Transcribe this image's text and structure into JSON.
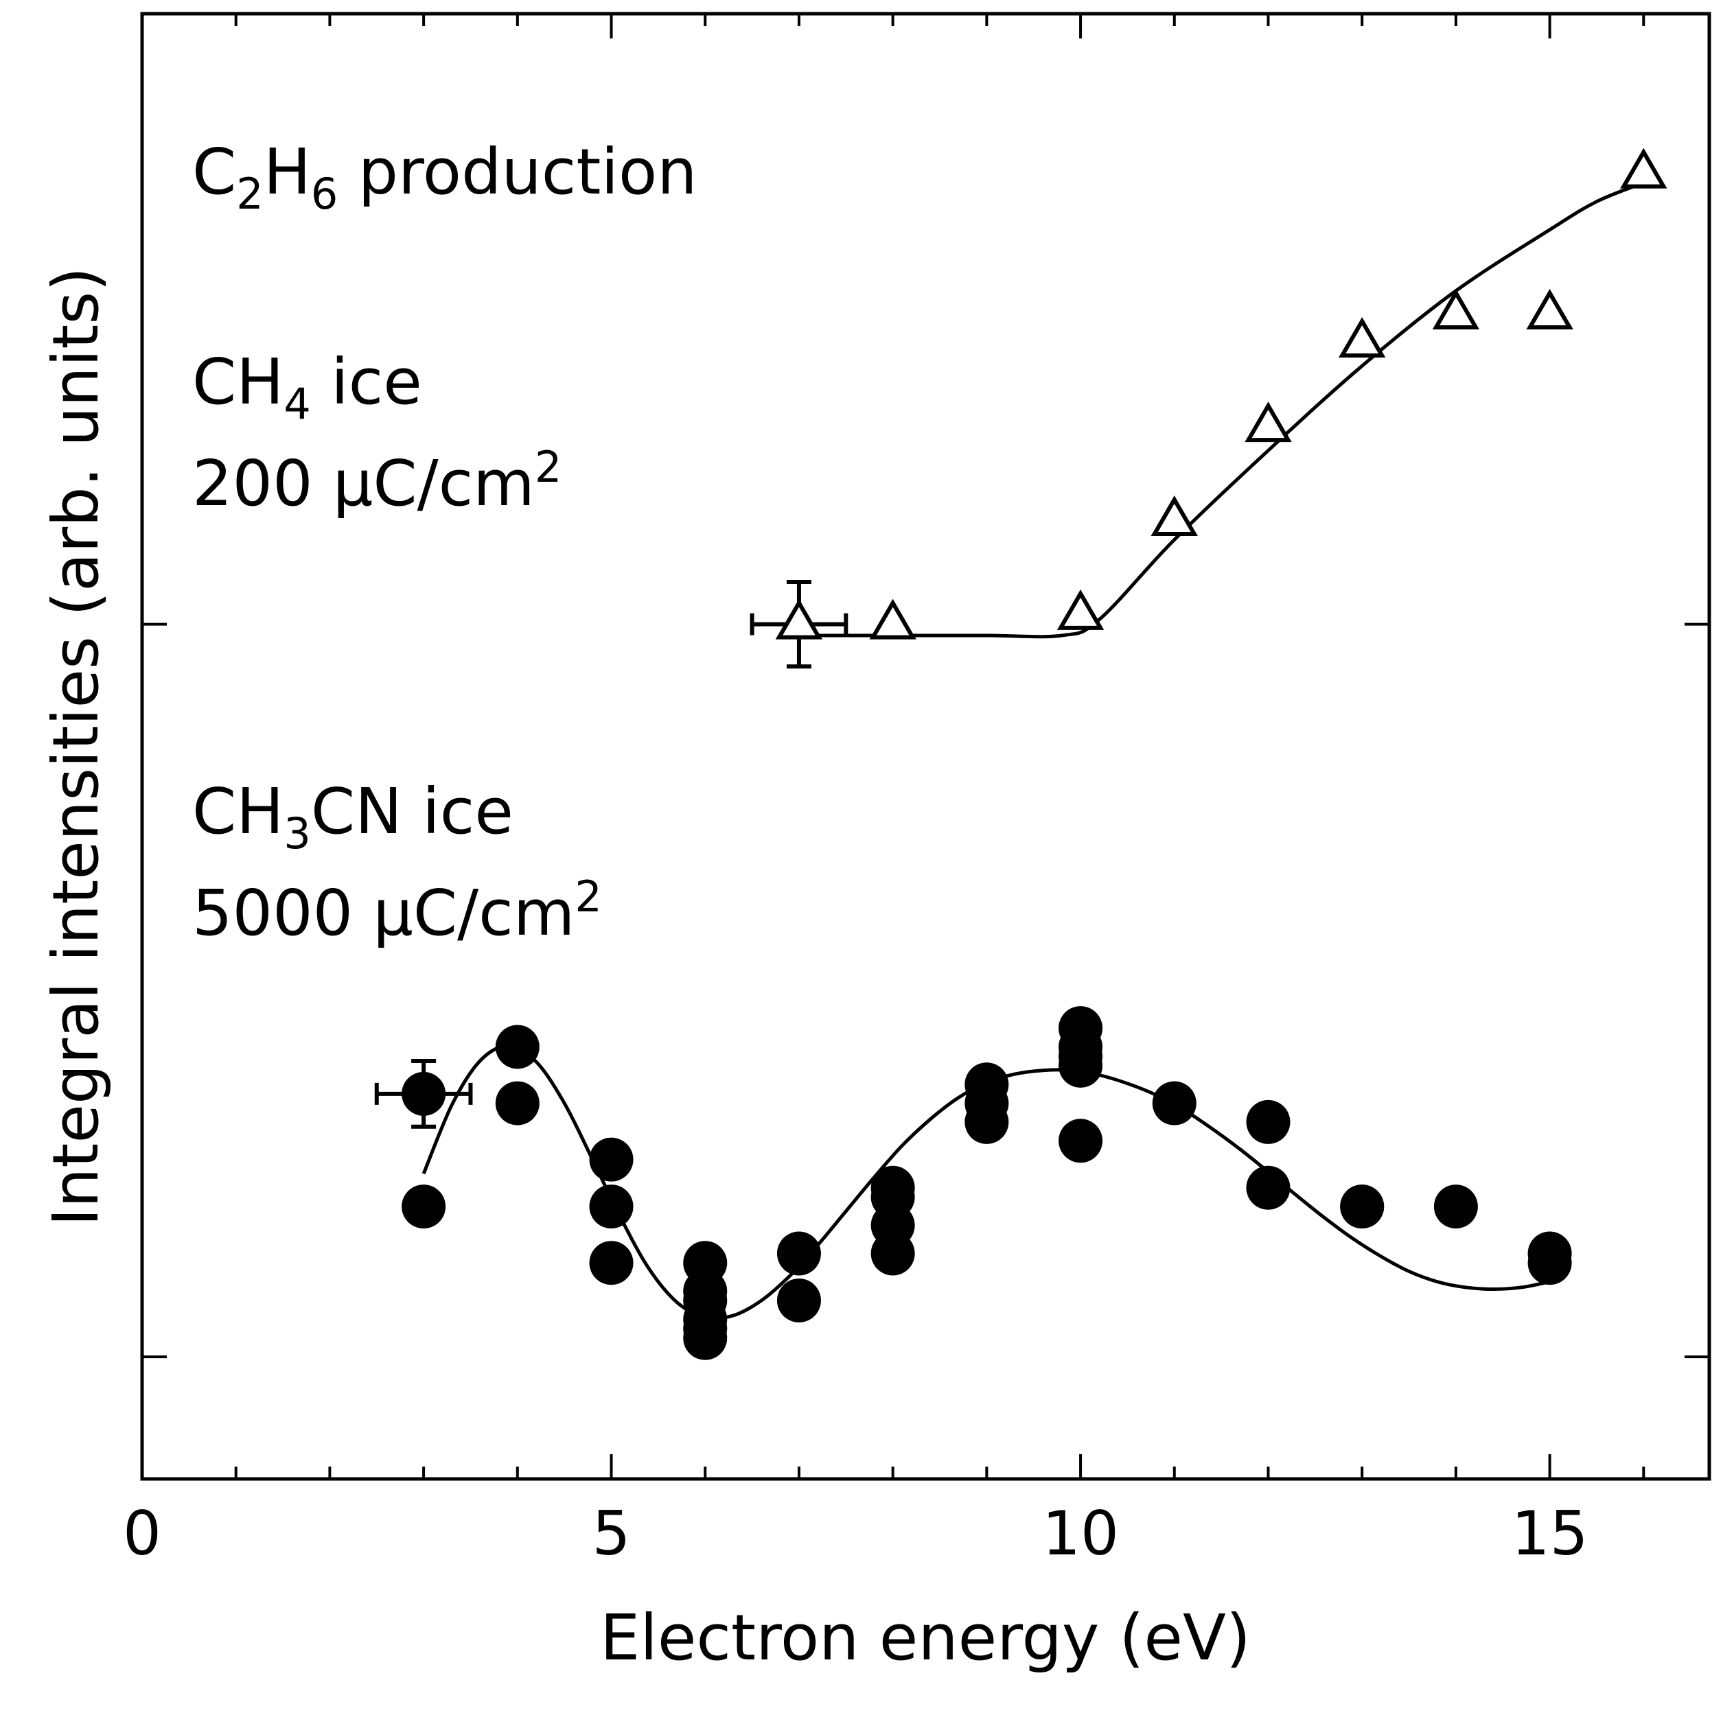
{
  "chart_data": {
    "type": "scatter",
    "xlabel": "Electron energy (eV)",
    "ylabel": "Integral intensities (arb. units)",
    "xlim": [
      0,
      16.7
    ],
    "ylim": [
      -2.6,
      13.0
    ],
    "x_ticks": [
      0,
      5,
      10,
      15
    ],
    "x_tick_labels": [
      "0",
      "5",
      "10",
      "15"
    ],
    "y_ticks": [
      -1.3,
      6.5
    ],
    "grid": false,
    "legend": "none",
    "annotations": [
      {
        "id": "c2h6",
        "parts": [
          {
            "text": "C",
            "sub": false
          },
          {
            "text": "2",
            "sub": true
          },
          {
            "text": "H",
            "sub": false
          },
          {
            "text": "6",
            "sub": true
          },
          {
            "text": " production",
            "sub": false
          }
        ]
      },
      {
        "id": "ch4-ice",
        "parts": [
          {
            "text": "CH",
            "sub": false
          },
          {
            "text": "4",
            "sub": true
          },
          {
            "text": " ice",
            "sub": false
          }
        ]
      },
      {
        "id": "ch4-dose",
        "parts": [
          {
            "text": "200 μC/cm",
            "sub": false
          },
          {
            "text": "2",
            "sup": true
          }
        ]
      },
      {
        "id": "ch3cn-ice",
        "parts": [
          {
            "text": "CH",
            "sub": false
          },
          {
            "text": "3",
            "sub": true
          },
          {
            "text": "CN ice",
            "sub": false
          }
        ]
      },
      {
        "id": "ch3cn-dose",
        "parts": [
          {
            "text": "5000 μC/cm",
            "sub": false
          },
          {
            "text": "2",
            "sup": true
          }
        ]
      }
    ],
    "series": [
      {
        "name": "CH4 ice (C2H6 production)",
        "marker": "open-triangle",
        "x": [
          7,
          8,
          10,
          11,
          12,
          13,
          14,
          15,
          16
        ],
        "y": [
          6.5,
          6.5,
          6.6,
          7.6,
          8.6,
          9.5,
          9.8,
          9.8,
          11.3
        ],
        "errorbar": {
          "x": 7,
          "y": 6.5,
          "xerr": 0.5,
          "yerr": 0.45
        },
        "fit": {
          "x": [
            7,
            8,
            9,
            9.8,
            10.2,
            11,
            12,
            13,
            14,
            15,
            15.5,
            16
          ],
          "y": [
            6.38,
            6.38,
            6.38,
            6.38,
            6.55,
            7.4,
            8.35,
            9.25,
            10.05,
            10.7,
            11.0,
            11.2
          ]
        }
      },
      {
        "name": "CH3CN ice (C2H6 production)",
        "marker": "filled-circle",
        "x": [
          3,
          3,
          4,
          4,
          5,
          5,
          5,
          6,
          6,
          6,
          6,
          6,
          6,
          7,
          7,
          8,
          8,
          8,
          8,
          9,
          9,
          9,
          10,
          10,
          10,
          10,
          10,
          11,
          12,
          12,
          13,
          13,
          14,
          15,
          15
        ],
        "y": [
          1.5,
          0.3,
          2.0,
          1.4,
          0.8,
          0.3,
          -0.3,
          -0.6,
          -0.7,
          -0.9,
          -1.0,
          -1.1,
          -0.3,
          -0.2,
          -0.7,
          0.5,
          0.4,
          -0.2,
          0.1,
          1.6,
          1.4,
          1.2,
          2.2,
          2.0,
          1.8,
          1.0,
          1.9,
          1.4,
          1.2,
          0.5,
          0.3,
          0.3,
          0.3,
          -0.2,
          -0.3
        ],
        "errorbar": {
          "x": 3,
          "y": 1.5,
          "xerr": 0.5,
          "yerr": 0.35
        },
        "fit": {
          "x": [
            3.0,
            3.3,
            3.6,
            3.9,
            4.2,
            4.5,
            4.8,
            5.1,
            5.4,
            5.7,
            6.0,
            6.3,
            6.6,
            6.9,
            7.2,
            7.5,
            7.8,
            8.1,
            8.4,
            8.7,
            9.0,
            9.3,
            9.6,
            9.9,
            10.2,
            10.5,
            10.8,
            11.1,
            11.4,
            11.7,
            12.0,
            12.3,
            12.6,
            12.9,
            13.2,
            13.5,
            13.8,
            14.1,
            14.4,
            14.7,
            15.0
          ],
          "y": [
            0.65,
            1.38,
            1.85,
            2.01,
            1.84,
            1.4,
            0.8,
            0.18,
            -0.36,
            -0.72,
            -0.88,
            -0.86,
            -0.7,
            -0.44,
            -0.11,
            0.25,
            0.61,
            0.95,
            1.23,
            1.46,
            1.62,
            1.71,
            1.75,
            1.75,
            1.7,
            1.61,
            1.49,
            1.33,
            1.13,
            0.91,
            0.67,
            0.42,
            0.18,
            -0.04,
            -0.23,
            -0.39,
            -0.5,
            -0.56,
            -0.58,
            -0.56,
            -0.5
          ]
        }
      }
    ]
  }
}
